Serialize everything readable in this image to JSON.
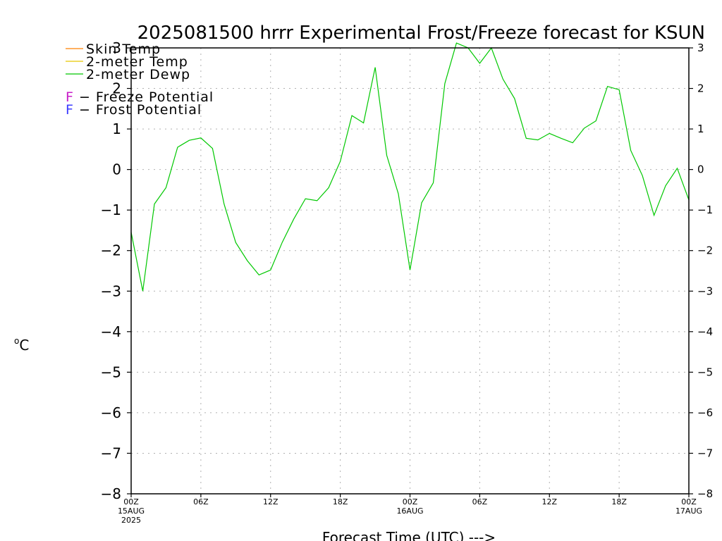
{
  "chart_data": {
    "type": "line",
    "title": "2025081500 hrrr Experimental Frost/Freeze forecast for KSUN",
    "xlabel": "Forecast Time (UTC) --->",
    "ylabel": "°C",
    "ylabel_sup": "o",
    "ylabel_main": "C",
    "ylim": [
      -8,
      3
    ],
    "y_ticks": [
      "3",
      "2",
      "1",
      "0",
      "−1",
      "−2",
      "−3",
      "−4",
      "−5",
      "−6",
      "−7",
      "−8"
    ],
    "y_tick_values": [
      3,
      2,
      1,
      0,
      -1,
      -2,
      -3,
      -4,
      -5,
      -6,
      -7,
      -8
    ],
    "xlim": [
      0,
      48
    ],
    "x_ticks": [
      {
        "hour": 0,
        "label": "00Z",
        "line2": "15AUG",
        "line3": "2025"
      },
      {
        "hour": 6,
        "label": "06Z",
        "line2": "",
        "line3": ""
      },
      {
        "hour": 12,
        "label": "12Z",
        "line2": "",
        "line3": ""
      },
      {
        "hour": 18,
        "label": "18Z",
        "line2": "",
        "line3": ""
      },
      {
        "hour": 24,
        "label": "00Z",
        "line2": "16AUG",
        "line3": ""
      },
      {
        "hour": 30,
        "label": "06Z",
        "line2": "",
        "line3": ""
      },
      {
        "hour": 36,
        "label": "12Z",
        "line2": "",
        "line3": ""
      },
      {
        "hour": 42,
        "label": "18Z",
        "line2": "",
        "line3": ""
      },
      {
        "hour": 48,
        "label": "00Z",
        "line2": "17AUG",
        "line3": ""
      }
    ],
    "grid": true,
    "legend": {
      "placement": "top-left",
      "entries": [
        {
          "name": "Skin Temp",
          "color": "#ff8000"
        },
        {
          "name": "2-meter Temp",
          "color": "#e6c800"
        },
        {
          "name": "2-meter Dewp",
          "color": "#00c800"
        }
      ],
      "potentials": [
        {
          "letter": "F",
          "text": " − Freeze Potential",
          "color": "#c81ec8"
        },
        {
          "letter": "F",
          "text": " − Frost Potential",
          "color": "#3c3cff"
        }
      ]
    },
    "series": [
      {
        "name": "2-meter Dewp",
        "color": "#00c800",
        "x": [
          0,
          1,
          2,
          3,
          4,
          5,
          6,
          7,
          8,
          9,
          10,
          11,
          12,
          13,
          14,
          15,
          16,
          17,
          18,
          19,
          20,
          21,
          22,
          23,
          24,
          25,
          26,
          27,
          28,
          29,
          30,
          31,
          32,
          33,
          34,
          35,
          36,
          37,
          38,
          39,
          40,
          41,
          42,
          43,
          44,
          45,
          46,
          47,
          48
        ],
        "y": [
          -1.55,
          -3.0,
          -0.85,
          -0.45,
          0.55,
          0.72,
          0.78,
          0.52,
          -0.85,
          -1.8,
          -2.25,
          -2.6,
          -2.48,
          -1.8,
          -1.22,
          -0.72,
          -0.77,
          -0.45,
          0.2,
          1.33,
          1.15,
          2.52,
          0.35,
          -0.6,
          -2.48,
          -0.82,
          -0.33,
          2.12,
          3.12,
          3.0,
          2.62,
          3.0,
          2.23,
          1.75,
          0.77,
          0.73,
          0.89,
          0.77,
          0.66,
          1.02,
          1.2,
          2.05,
          1.97,
          0.47,
          -0.15,
          -1.13,
          -0.4,
          0.03,
          -0.75
        ]
      }
    ]
  }
}
